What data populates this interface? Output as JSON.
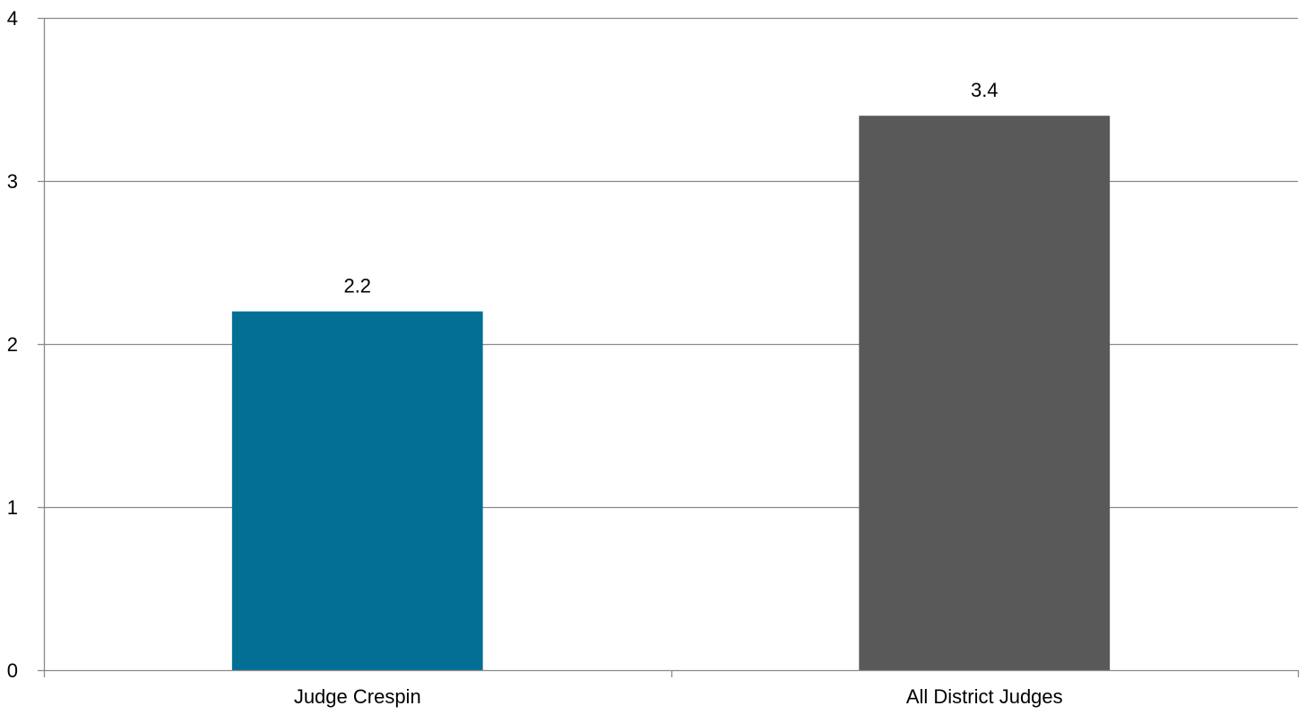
{
  "chart_data": {
    "type": "bar",
    "categories": [
      "Judge Crespin",
      "All District Judges"
    ],
    "values": [
      2.2,
      3.4
    ],
    "data_labels": [
      "2.2",
      "3.4"
    ],
    "bar_colors": [
      "#036f95",
      "#595959"
    ],
    "ylim": [
      0,
      4
    ],
    "yticks": [
      0,
      1,
      2,
      3,
      4
    ],
    "ytick_labels": [
      "0",
      "1",
      "2",
      "3",
      "4"
    ],
    "grid": true,
    "legend": "none",
    "title": "",
    "xlabel": "",
    "ylabel": ""
  },
  "colors": {
    "gridline": "#898989",
    "axis": "#898989",
    "text": "#000000"
  }
}
